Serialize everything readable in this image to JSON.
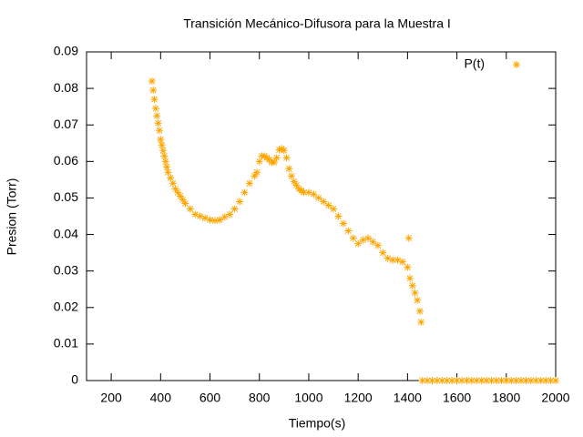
{
  "chart_data": {
    "type": "scatter",
    "title": "Transición Mecánico-Difusora para la Muestra I",
    "xlabel": "Tiempo(s)",
    "ylabel": "Presion (Torr)",
    "legend": "top-right",
    "grid": false,
    "xlim": [
      100,
      2000
    ],
    "ylim": [
      0,
      0.09
    ],
    "xticks": [
      200,
      400,
      600,
      800,
      1000,
      1200,
      1400,
      1600,
      1800,
      2000
    ],
    "yticks": [
      0,
      0.01,
      0.02,
      0.03,
      0.04,
      0.05,
      0.06,
      0.07,
      0.08,
      0.09
    ],
    "series": [
      {
        "name": "P(t)",
        "color": "#ffa500",
        "x": [
          365,
          370,
          375,
          380,
          385,
          390,
          395,
          400,
          405,
          410,
          415,
          420,
          425,
          430,
          440,
          450,
          460,
          470,
          480,
          490,
          500,
          520,
          540,
          560,
          580,
          600,
          620,
          640,
          660,
          680,
          700,
          720,
          740,
          760,
          780,
          790,
          800,
          810,
          820,
          830,
          840,
          850,
          860,
          870,
          880,
          890,
          900,
          910,
          920,
          930,
          940,
          950,
          960,
          970,
          980,
          1000,
          1020,
          1040,
          1060,
          1080,
          1100,
          1120,
          1140,
          1160,
          1180,
          1200,
          1220,
          1240,
          1260,
          1280,
          1300,
          1320,
          1340,
          1360,
          1380,
          1400,
          1405,
          1410,
          1420,
          1430,
          1440,
          1450,
          1455,
          1460,
          1480,
          1500,
          1520,
          1540,
          1560,
          1580,
          1600,
          1620,
          1640,
          1660,
          1680,
          1700,
          1720,
          1740,
          1760,
          1780,
          1800,
          1820,
          1840,
          1860,
          1880,
          1900,
          1920,
          1940,
          1960,
          1980,
          2000
        ],
        "values": [
          0.082,
          0.0795,
          0.077,
          0.0745,
          0.0725,
          0.0705,
          0.0685,
          0.066,
          0.0645,
          0.063,
          0.0615,
          0.06,
          0.0585,
          0.057,
          0.0555,
          0.054,
          0.0525,
          0.0515,
          0.0505,
          0.0495,
          0.0485,
          0.047,
          0.0455,
          0.045,
          0.0445,
          0.044,
          0.0438,
          0.044,
          0.0448,
          0.0455,
          0.047,
          0.049,
          0.0515,
          0.054,
          0.056,
          0.057,
          0.06,
          0.0615,
          0.0615,
          0.061,
          0.0605,
          0.0598,
          0.0598,
          0.061,
          0.0632,
          0.0635,
          0.063,
          0.061,
          0.058,
          0.056,
          0.0545,
          0.0535,
          0.0525,
          0.052,
          0.0515,
          0.0515,
          0.051,
          0.05,
          0.049,
          0.048,
          0.047,
          0.045,
          0.043,
          0.041,
          0.039,
          0.0375,
          0.0385,
          0.039,
          0.038,
          0.037,
          0.035,
          0.0335,
          0.033,
          0.033,
          0.0325,
          0.031,
          0.039,
          0.028,
          0.026,
          0.024,
          0.022,
          0.019,
          0.016,
          0,
          0,
          0,
          0,
          0,
          0,
          0,
          0,
          0,
          0,
          0,
          0,
          0,
          0,
          0,
          0,
          0,
          0,
          0,
          0,
          0,
          0,
          0,
          0,
          0,
          0,
          0,
          0
        ]
      }
    ]
  }
}
